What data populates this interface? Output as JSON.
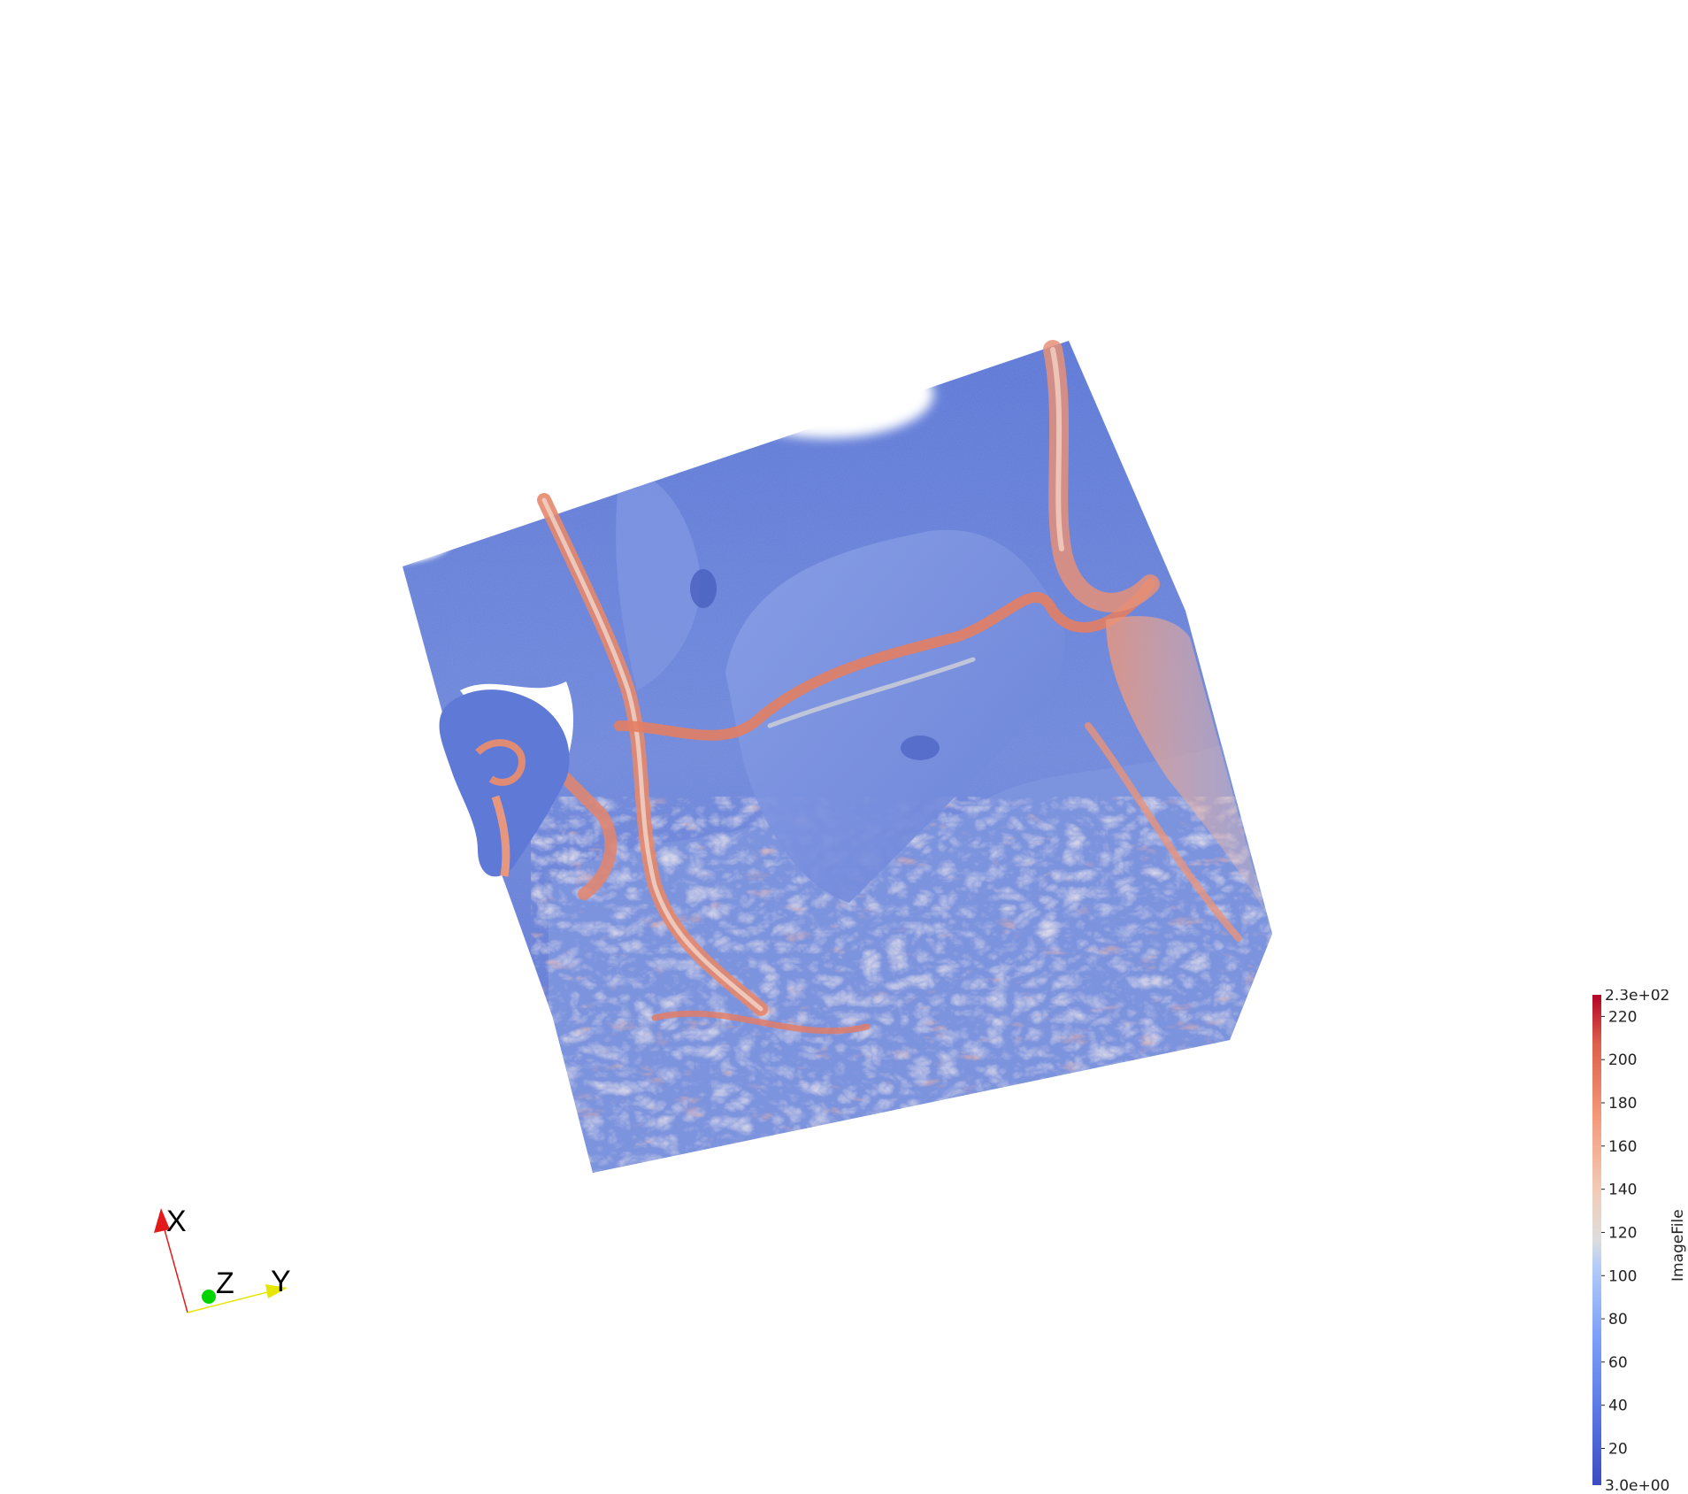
{
  "colors": {
    "background": "#ffffff",
    "low": "#3b4cc0",
    "mid": "#dddddd",
    "high": "#b40426",
    "x_axis": "#e31a1c",
    "y_axis": "#e6e600",
    "z_axis": "#00d400"
  },
  "orientation_axes": {
    "x_label": "X",
    "y_label": "Y",
    "z_label": "Z"
  },
  "colorbar": {
    "title": "ImageFile",
    "max_label": "2.3e+02",
    "min_label": "3.0e+00",
    "range": [
      3.0,
      230.0
    ],
    "ticks": [
      {
        "value": 220,
        "label": "220"
      },
      {
        "value": 200,
        "label": "200"
      },
      {
        "value": 180,
        "label": "180"
      },
      {
        "value": 160,
        "label": "160"
      },
      {
        "value": 140,
        "label": "140"
      },
      {
        "value": 120,
        "label": "120"
      },
      {
        "value": 100,
        "label": "100"
      },
      {
        "value": 80,
        "label": "80"
      },
      {
        "value": 60,
        "label": "60"
      },
      {
        "value": 40,
        "label": "40"
      },
      {
        "value": 20,
        "label": "20"
      }
    ]
  }
}
